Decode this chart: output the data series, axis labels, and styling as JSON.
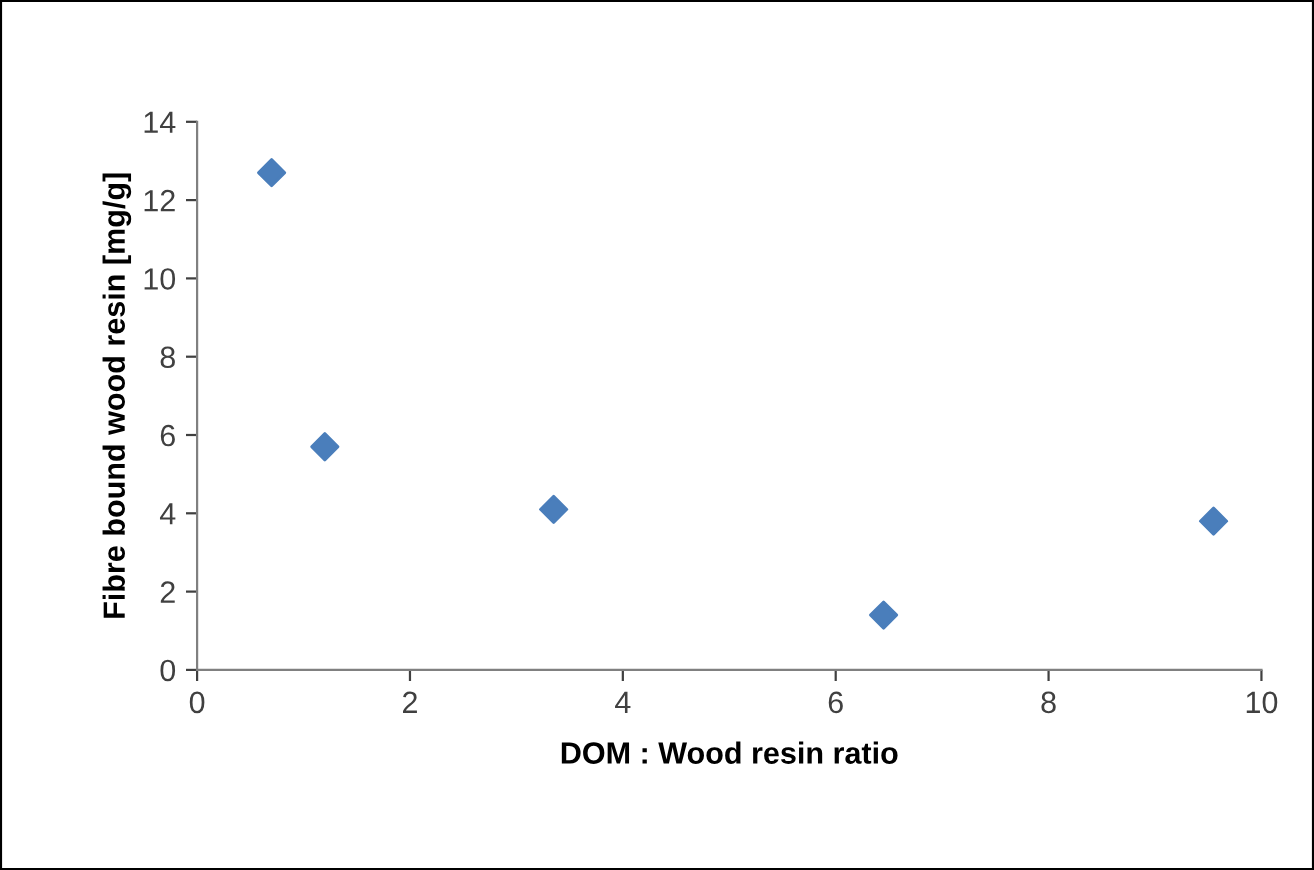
{
  "chart_data": {
    "type": "scatter",
    "xlabel": "DOM : Wood resin ratio",
    "ylabel": "Fibre bound wood resin [mg/g]",
    "x": [
      0.7,
      1.2,
      3.35,
      6.45,
      9.55
    ],
    "series": [
      {
        "color": "#4a7ebb",
        "values": [
          12.7,
          5.7,
          4.1,
          1.4,
          3.8
        ]
      }
    ],
    "xlim": [
      0,
      10
    ],
    "xticks": [
      0,
      2,
      4,
      6,
      8,
      10
    ],
    "ylim": [
      0,
      14
    ],
    "yticks": [
      0,
      2,
      4,
      6,
      8,
      10,
      12,
      14
    ],
    "marker": "diamond",
    "grid": false,
    "legend": false
  }
}
